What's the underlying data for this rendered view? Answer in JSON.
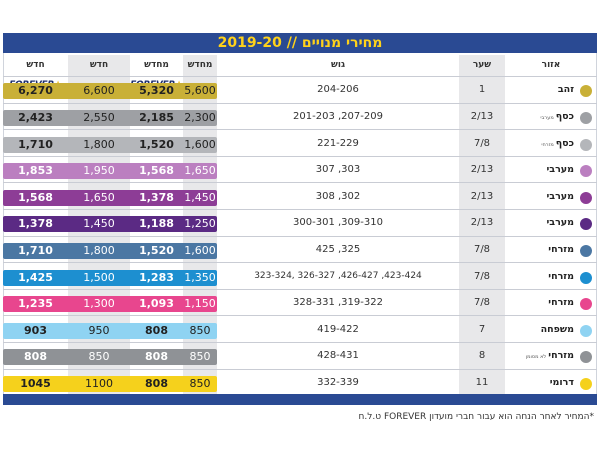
{
  "title": "מחירי מנויים // 2019-20",
  "headers": {
    "area": "אזור",
    "gate": "שער",
    "block": "גוש",
    "renew": "מחדש",
    "renew_forever": "מחדש",
    "new": "חדש",
    "new_forever": "חדש",
    "logo_text": "FOREVER"
  },
  "rows": [
    {
      "area": "זהב",
      "area_note": "",
      "gate": "1",
      "block": "204-206",
      "renew": "5,600",
      "renew_forever": "5,320",
      "new": "6,600",
      "new_forever": "6,270",
      "color": "#c9b037"
    },
    {
      "area": "כסף",
      "area_note": "מערבי",
      "gate": "2/13",
      "block": "201-203 ,207-209",
      "renew": "2,300",
      "renew_forever": "2,185",
      "new": "2,550",
      "new_forever": "2,423",
      "color": "#9ea0a4"
    },
    {
      "area": "כסף",
      "area_note": "מזרחי",
      "gate": "7/8",
      "block": "221-229",
      "renew": "1,600",
      "renew_forever": "1,520",
      "new": "1,800",
      "new_forever": "1,710",
      "color": "#b4b6ba"
    },
    {
      "area": "מערבי",
      "area_note": "",
      "gate": "2/13",
      "block": "307 ,303",
      "renew": "1,650",
      "renew_forever": "1,568",
      "new": "1,950",
      "new_forever": "1,853",
      "color": "#bb7fc0"
    },
    {
      "area": "מערבי",
      "area_note": "",
      "gate": "2/13",
      "block": "308 ,302",
      "renew": "1,450",
      "renew_forever": "1,378",
      "new": "1,650",
      "new_forever": "1,568",
      "color": "#8d3d96"
    },
    {
      "area": "מערבי",
      "area_note": "",
      "gate": "2/13",
      "block": "300-301 ,309-310",
      "renew": "1,250",
      "renew_forever": "1,188",
      "new": "1,450",
      "new_forever": "1,378",
      "color": "#5b2a84"
    },
    {
      "area": "מזרחי",
      "area_note": "",
      "gate": "7/8",
      "block": "425 ,325",
      "renew": "1,600",
      "renew_forever": "1,520",
      "new": "1,800",
      "new_forever": "1,710",
      "color": "#4b77a3"
    },
    {
      "area": "מזרחי",
      "area_note": "",
      "gate": "7/8",
      "block": "323-324, 326-327 ,426-427 ,423-424",
      "renew": "1,350",
      "renew_forever": "1,283",
      "new": "1,500",
      "new_forever": "1,425",
      "color": "#1d8fd0"
    },
    {
      "area": "מזרחי",
      "area_note": "",
      "gate": "7/8",
      "block": "328-331 ,319-322",
      "renew": "1,150",
      "renew_forever": "1,093",
      "new": "1,300",
      "new_forever": "1,235",
      "color": "#e8468e"
    },
    {
      "area": "משפחה",
      "area_note": "",
      "gate": "7",
      "block": "419-422",
      "renew": "850",
      "renew_forever": "808",
      "new": "950",
      "new_forever": "903",
      "color": "#8fd3f2"
    },
    {
      "area": "מזרחי",
      "area_note": "לא מסומן",
      "gate": "8",
      "block": "428-431",
      "renew": "850",
      "renew_forever": "808",
      "new": "850",
      "new_forever": "808",
      "color": "#8f9296"
    },
    {
      "area": "דרומי",
      "area_note": "",
      "gate": "11",
      "block": "332-339",
      "renew": "850",
      "renew_forever": "808",
      "new": "1100",
      "new_forever": "1045",
      "color": "#f5d11c"
    }
  ],
  "footnote": "*המחיר לאחר הנחה הוא עבור חברי מועדון FOREVER ט.ל.ח"
}
